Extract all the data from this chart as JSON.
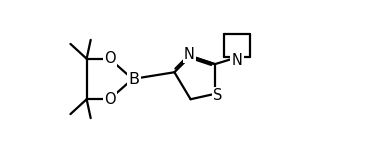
{
  "bg_color": "#ffffff",
  "line_color": "#000000",
  "line_width": 1.6,
  "font_size": 10.5,
  "figsize": [
    3.65,
    1.58
  ],
  "dpi": 100,
  "xlim": [
    0,
    10.5
  ],
  "ylim": [
    0,
    5.8
  ]
}
